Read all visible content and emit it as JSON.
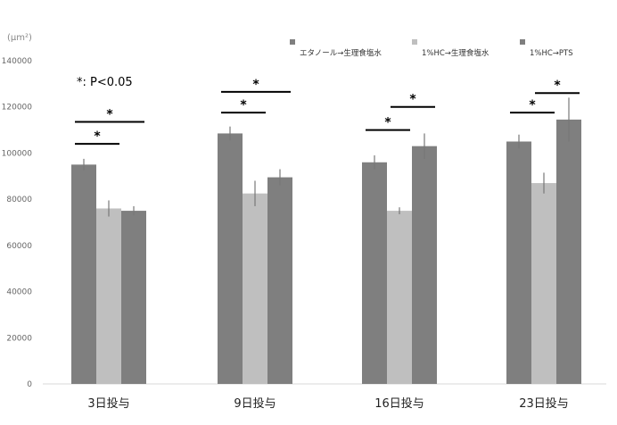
{
  "chart_data": {
    "type": "bar",
    "unit_label": "(µm²)",
    "note": "*: P<0.05",
    "categories": [
      "3日投与",
      "9日投与",
      "16日投与",
      "23日投与"
    ],
    "ylim": [
      0,
      140000
    ],
    "yticks": [
      "0",
      "20000",
      "40000",
      "60000",
      "80000",
      "100000",
      "120000",
      "140000"
    ],
    "series": [
      {
        "name": "エタノール→生理食塩水",
        "color": "#7f7f7f",
        "values": [
          95000,
          108500,
          96000,
          105000
        ],
        "errors": [
          2500,
          3000,
          3000,
          3000
        ]
      },
      {
        "name": "1%HC→生理食塩水",
        "color": "#bfbfbf",
        "values": [
          76000,
          82500,
          75000,
          87000
        ],
        "errors": [
          3500,
          5500,
          1500,
          4500
        ]
      },
      {
        "name": "1%HC→PTS",
        "color": "#7f7f7f",
        "values": [
          75000,
          89500,
          103000,
          114500
        ],
        "errors": [
          2000,
          3500,
          5500,
          9500
        ]
      }
    ],
    "significance": [
      {
        "category": 0,
        "from": 0,
        "to": 1,
        "level": 104000,
        "label": "*"
      },
      {
        "category": 0,
        "from": 0,
        "to": 2,
        "level": 113500,
        "label": "*"
      },
      {
        "category": 1,
        "from": 0,
        "to": 1,
        "level": 117500,
        "label": "*"
      },
      {
        "category": 1,
        "from": 0,
        "to": 2,
        "level": 126500,
        "label": "*"
      },
      {
        "category": 2,
        "from": 0,
        "to": 1,
        "level": 110000,
        "label": "*"
      },
      {
        "category": 2,
        "from": 1,
        "to": 2,
        "level": 120000,
        "label": "*"
      },
      {
        "category": 3,
        "from": 0,
        "to": 1,
        "level": 117500,
        "label": "*"
      },
      {
        "category": 3,
        "from": 1,
        "to": 2,
        "level": 126000,
        "label": "*"
      }
    ]
  }
}
